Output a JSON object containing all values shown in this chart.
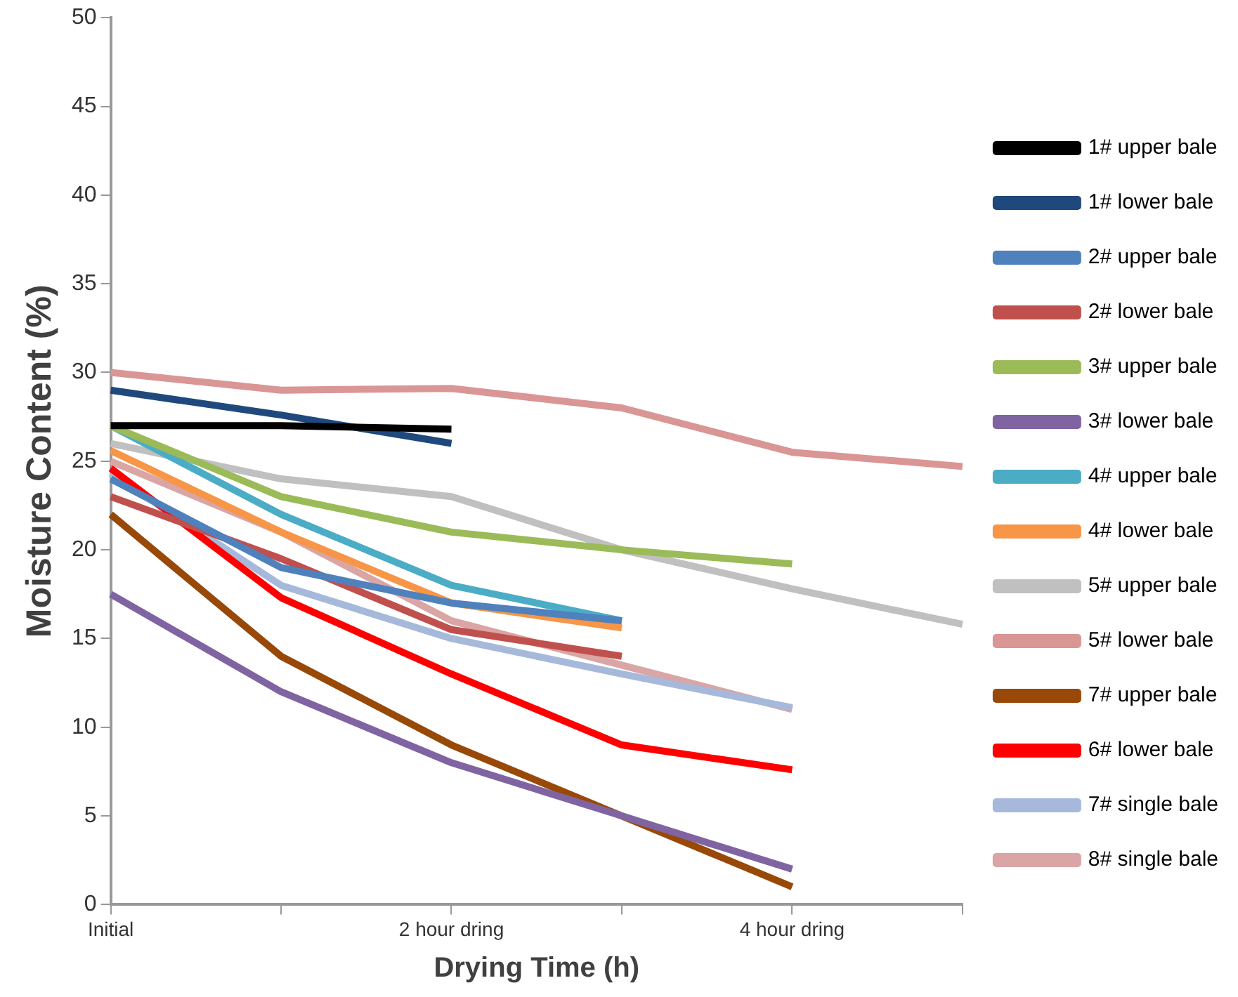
{
  "chart_data": {
    "type": "line",
    "xlabel": "Drying Time (h)",
    "ylabel": "Moisture Content (%)",
    "categories": [
      "Initial",
      null,
      "2 hour dring",
      null,
      "4 hour dring",
      null
    ],
    "ylim": [
      0,
      50
    ],
    "yticks": [
      0,
      5,
      10,
      15,
      20,
      25,
      30,
      35,
      40,
      45,
      50
    ],
    "grid": false,
    "legend": "right",
    "marker": "none",
    "line_style": "solid",
    "series": [
      {
        "name": "1# upper bale",
        "color": "#000000",
        "values": [
          27,
          27,
          26.8,
          null,
          null,
          null
        ]
      },
      {
        "name": "1# lower bale",
        "color": "#1f497d",
        "values": [
          29,
          27.6,
          26,
          null,
          null,
          null
        ]
      },
      {
        "name": "2# upper bale",
        "color": "#4f81bd",
        "values": [
          24,
          19,
          17,
          16,
          null,
          null
        ]
      },
      {
        "name": "2# lower bale",
        "color": "#c0504d",
        "values": [
          23,
          19.5,
          15.5,
          14,
          null,
          null
        ]
      },
      {
        "name": "3# upper bale",
        "color": "#9bbb59",
        "values": [
          27,
          23,
          21,
          20,
          19.2,
          null
        ]
      },
      {
        "name": "3# lower bale",
        "color": "#8064a2",
        "values": [
          17.5,
          12,
          8,
          5,
          2,
          null
        ]
      },
      {
        "name": "4# upper bale",
        "color": "#4bacc6",
        "values": [
          27,
          22,
          18,
          16,
          null,
          null
        ]
      },
      {
        "name": "4# lower bale",
        "color": "#f79646",
        "values": [
          25.6,
          21,
          17,
          15.6,
          null,
          null
        ]
      },
      {
        "name": "5# upper bale",
        "color": "#c0c0c0",
        "values": [
          26,
          24,
          23,
          20,
          17.8,
          15.8
        ]
      },
      {
        "name": "5# lower bale",
        "color": "#d99694",
        "values": [
          30,
          29,
          29.1,
          28,
          25.5,
          24.7
        ]
      },
      {
        "name": "7# upper bale",
        "color": "#984807",
        "values": [
          22,
          14,
          9,
          5,
          1,
          null
        ]
      },
      {
        "name": "6# lower bale",
        "color": "#ff0000",
        "values": [
          24.6,
          17.3,
          13,
          9,
          7.6,
          null
        ]
      },
      {
        "name": "7# single bale",
        "color": "#a6b9db",
        "values": [
          24.3,
          18,
          15,
          13,
          11.1,
          null
        ]
      },
      {
        "name": "8# single bale",
        "color": "#d9a5a5",
        "values": [
          25,
          21,
          16,
          13.5,
          11,
          null
        ]
      }
    ]
  }
}
